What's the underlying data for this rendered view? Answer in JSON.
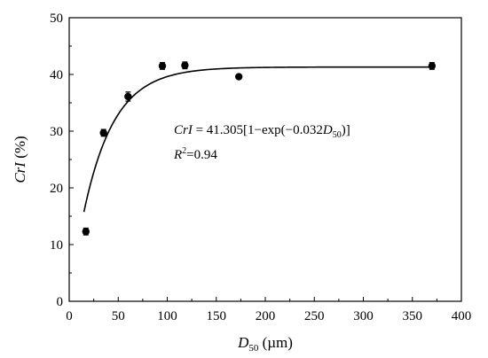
{
  "chart_data": {
    "type": "scatter",
    "title": "",
    "xlabel": {
      "base": "D",
      "sub": "50",
      "unit": " (µm)"
    },
    "ylabel": {
      "main": "CrI",
      "unit": " (%)"
    },
    "xlim": [
      0,
      400
    ],
    "ylim": [
      0,
      50
    ],
    "xticks": [
      "0",
      "50",
      "100",
      "150",
      "200",
      "250",
      "300",
      "350",
      "400"
    ],
    "yticks": [
      "0",
      "10",
      "20",
      "30",
      "40",
      "50"
    ],
    "grid": false,
    "points": [
      {
        "x": 17,
        "y": 12.3,
        "err": 0.6
      },
      {
        "x": 35,
        "y": 29.7,
        "err": 0.6
      },
      {
        "x": 60,
        "y": 36.1,
        "err": 0.8
      },
      {
        "x": 95,
        "y": 41.5,
        "err": 0.6
      },
      {
        "x": 118,
        "y": 41.6,
        "err": 0.6
      },
      {
        "x": 173,
        "y": 39.6,
        "err": 0.3
      },
      {
        "x": 370,
        "y": 41.5,
        "err": 0.6
      }
    ],
    "fit": {
      "a": 41.305,
      "b": 0.032,
      "x_start": 15,
      "x_end": 370
    },
    "equation": {
      "lhs": "CrI",
      "eq": " = 41.305[1−exp(−0.032",
      "var": "D",
      "sub": "50",
      "close": ")]",
      "r2_base": "R",
      "r2_sup": "2",
      "r2_val": "=0.94"
    },
    "colors": {
      "marker": "#000000",
      "line": "#000000",
      "axis": "#000000"
    }
  }
}
